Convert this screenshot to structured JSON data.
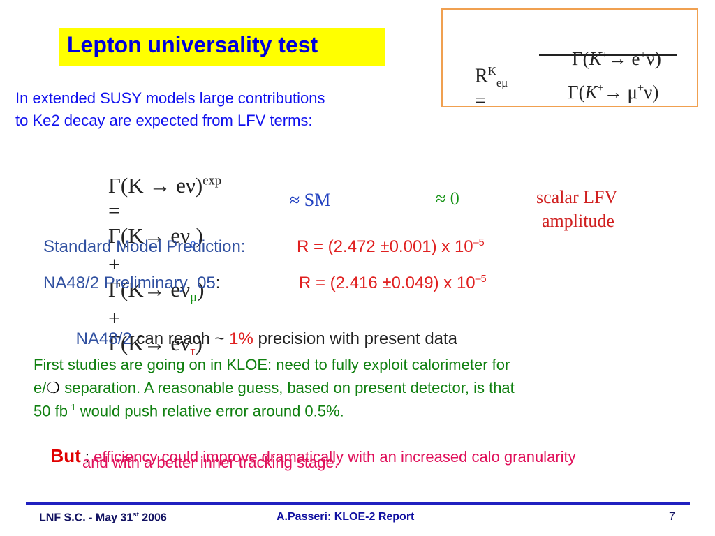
{
  "title": "Lepton universality test",
  "ratio": {
    "lhs": "R",
    "lhs_sup": "K",
    "lhs_sub": "eμ",
    "eq": "=",
    "num": [
      "Γ(",
      "K",
      "+",
      "→ e",
      "+",
      "ν)"
    ],
    "den": [
      "Γ(",
      "K",
      "+",
      "→ μ",
      "+",
      "ν)"
    ]
  },
  "intro": [
    "In extended SUSY models large contributions",
    "to Ke2 decay are expected from LFV terms:"
  ],
  "equation": {
    "lhs": "Γ(K → eν)",
    "lhs_sup": "exp",
    "eq": "=",
    "terms": [
      {
        "text": "Γ(K→ eν",
        "sub": "e",
        "close": ")"
      },
      {
        "text": "Γ(K→ eν",
        "sub": "μ",
        "close": ")"
      },
      {
        "text": "Γ(K→ eν",
        "sub": "τ",
        "close": ")"
      }
    ],
    "plus": "+"
  },
  "notes": {
    "sm": "≈ SM",
    "zero": "≈ 0",
    "lfv": [
      "scalar LFV",
      "amplitude"
    ]
  },
  "results": [
    {
      "label": "Standard Model Prediction:",
      "value": "R = (2.472 ±0.001) x 10",
      "exp": "–5"
    },
    {
      "label": "NA48/2 Preliminary  05",
      "colon": ":",
      "value": "R = (2.416 ±0.049) x 10",
      "exp": "–5"
    }
  ],
  "reach": {
    "who": "NA48/2",
    "text": "can reach ~",
    "pct": "1%",
    "rest": "precision with present data"
  },
  "paragraph": {
    "line1": "First studies are going on in KLOE: need to fully exploit calorimeter for",
    "line2a": "e/",
    "line2sym": "❍",
    "line2b": "separation. A reasonable guess, based on present detector, is that",
    "line3a": "50 fb",
    "line3sup": "-1",
    "line3b": "would push relative error around 0.5%."
  },
  "but": {
    "word": "But",
    "colon": ":",
    "line1": "efficiency could improve dramatically with an increased calo granularity",
    "line2": "and with a better inner tracking stage."
  },
  "footer": {
    "left": "LNF S.C. - May 31",
    "left_sup": "st",
    "left_year": "2006",
    "center": "A.Passeri: KLOE-2 Report",
    "page": "7"
  }
}
